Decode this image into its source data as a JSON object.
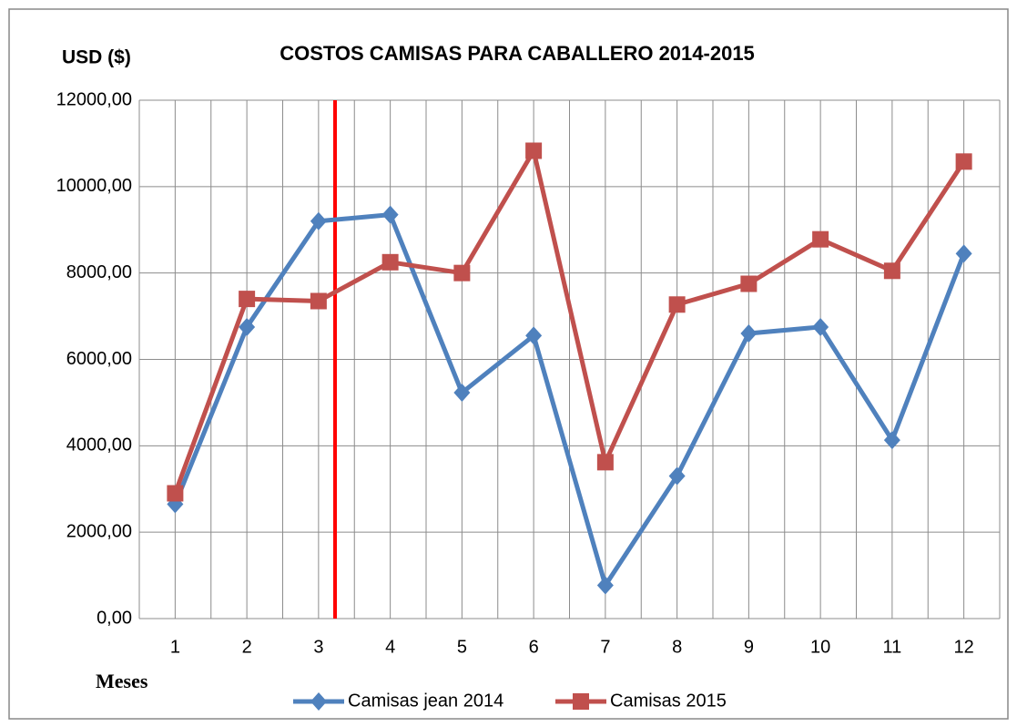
{
  "chart_data": {
    "type": "line",
    "title": "COSTOS CAMISAS PARA CABALLERO 2014-2015",
    "y_label": "USD ($)",
    "x_label": "Meses",
    "categories": [
      "1",
      "2",
      "3",
      "4",
      "5",
      "6",
      "7",
      "8",
      "9",
      "10",
      "11",
      "12"
    ],
    "series": [
      {
        "name": "Camisas jean 2014",
        "color": "#4f81bd",
        "marker": "diamond",
        "values": [
          2650,
          6750,
          9200,
          9350,
          5230,
          6550,
          770,
          3300,
          6600,
          6750,
          4130,
          8450
        ]
      },
      {
        "name": "Camisas 2015",
        "color": "#c0504d",
        "marker": "square",
        "values": [
          2900,
          7400,
          7350,
          8250,
          8000,
          10830,
          3620,
          7270,
          7750,
          8780,
          8050,
          10580
        ]
      }
    ],
    "ylim": [
      0,
      12000
    ],
    "yticks": [
      {
        "value": 0,
        "label": "0,00"
      },
      {
        "value": 2000,
        "label": "2000,00"
      },
      {
        "value": 4000,
        "label": "4000,00"
      },
      {
        "value": 6000,
        "label": "6000,00"
      },
      {
        "value": 8000,
        "label": "8000,00"
      },
      {
        "value": 10000,
        "label": "10000,00"
      },
      {
        "value": 12000,
        "label": "12000,00"
      }
    ],
    "grid": true,
    "legend": "bottom"
  }
}
